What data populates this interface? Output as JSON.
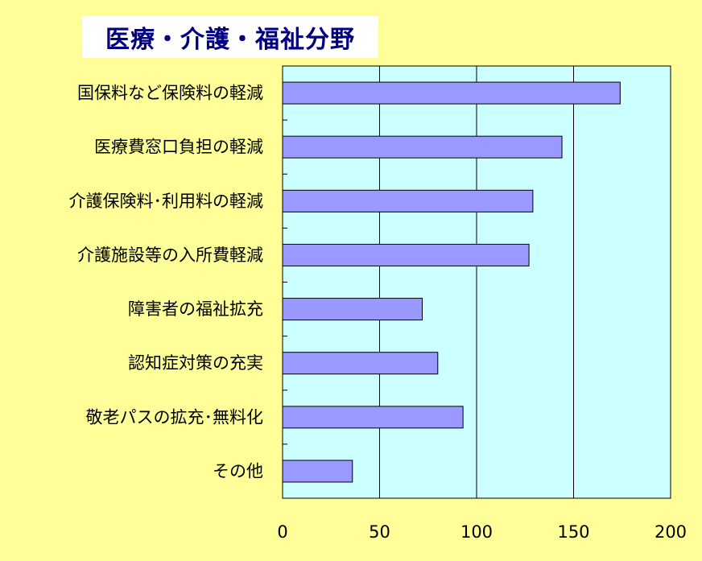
{
  "colors": {
    "page_background": "#FFFF99",
    "plot_background": "#CCFFFF",
    "bar_fill": "#9999FF",
    "bar_stroke": "#000000",
    "title_color": "#000080",
    "title_background": "#FFFFFF"
  },
  "chart_data": {
    "type": "bar",
    "orientation": "horizontal",
    "title": "医療・介護・福祉分野",
    "categories": [
      "国保料など保険料の軽減",
      "医療費窓口負担の軽減",
      "介護保険料･利用料の軽減",
      "介護施設等の入所費軽減",
      "障害者の福祉拡充",
      "認知症対策の充実",
      "敬老パスの拡充･無料化",
      "その他"
    ],
    "values": [
      174,
      144,
      129,
      127,
      72,
      80,
      93,
      36
    ],
    "xlim": [
      0,
      200
    ],
    "xticks": [
      "0",
      "50",
      "100",
      "150",
      "200"
    ],
    "vertical_gridlines": true,
    "legend": "none"
  }
}
